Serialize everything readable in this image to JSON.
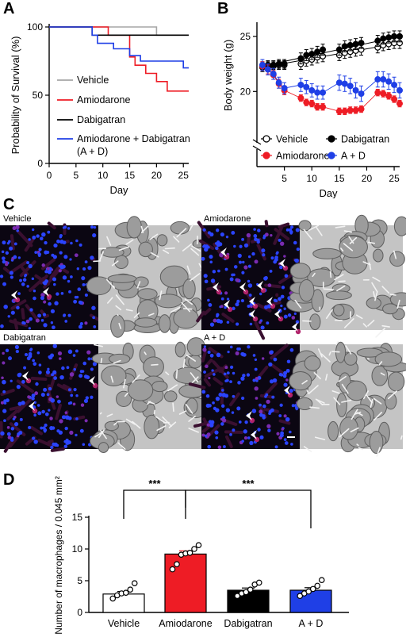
{
  "panels": {
    "a": "A",
    "b": "B",
    "c": "C",
    "d": "D"
  },
  "colors": {
    "vehicle_gray": "#a6a6a6",
    "amiodarone_red": "#ee1c25",
    "dabigatran_black": "#000000",
    "ad_blue": "#1f3fe6",
    "nuclei_blue": "#2b44ff",
    "macrophage_red": "#b0226a"
  },
  "panel_c_labels": [
    "Vehicle",
    "Amiodarone",
    "Dabigatran",
    "A + D"
  ],
  "chart_data": [
    {
      "type": "line",
      "style": "step",
      "xlabel": "Day",
      "ylabel": "Probability of Survival (%)",
      "xlim": [
        0,
        26
      ],
      "ylim": [
        0,
        100
      ],
      "xticks": [
        0,
        5,
        10,
        15,
        20,
        25
      ],
      "yticks": [
        0,
        50,
        100
      ],
      "legend": "inside-bottom-left",
      "series": [
        {
          "name": "Vehicle",
          "color": "#a6a6a6",
          "x": [
            0,
            20,
            20,
            26
          ],
          "y": [
            100,
            100,
            94,
            94
          ]
        },
        {
          "name": "Amiodarone",
          "color": "#ee1c25",
          "x": [
            0,
            11,
            11,
            15,
            15,
            16,
            16,
            18,
            18,
            20,
            20,
            22,
            22,
            26
          ],
          "y": [
            100,
            100,
            94,
            94,
            78,
            78,
            72,
            72,
            66,
            66,
            60,
            60,
            53,
            53
          ]
        },
        {
          "name": "Dabigatran",
          "color": "#000000",
          "x": [
            0,
            8,
            8,
            19,
            19,
            26
          ],
          "y": [
            100,
            100,
            94,
            94,
            94,
            94
          ]
        },
        {
          "name": "Amiodarone + Dabigatran",
          "name_line2": "(A + D)",
          "color": "#1f3fe6",
          "x": [
            0,
            8,
            8,
            9,
            9,
            12,
            12,
            15,
            15,
            17,
            17,
            25,
            25,
            26
          ],
          "y": [
            100,
            100,
            94,
            94,
            88,
            88,
            84,
            84,
            79,
            79,
            75,
            75,
            70,
            70
          ]
        }
      ]
    },
    {
      "type": "line",
      "style": "error-bars",
      "xlabel": "Day",
      "ylabel": "Body weight (g)",
      "xlim": [
        0,
        26
      ],
      "ylim": [
        17.5,
        26
      ],
      "axis_break": true,
      "xticks": [
        5,
        10,
        15,
        20,
        25
      ],
      "yticks": [
        20,
        25
      ],
      "legend": "bottom",
      "series": [
        {
          "name": "Vehicle",
          "marker": "open-circle",
          "color": "#000000",
          "x": [
            1,
            2,
            3,
            4,
            5,
            8,
            9,
            10,
            11,
            12,
            15,
            16,
            17,
            18,
            19,
            22,
            23,
            24,
            25,
            26
          ],
          "values": [
            22.2,
            22.3,
            22.3,
            22.4,
            22.4,
            22.5,
            22.8,
            22.9,
            23.1,
            23.2,
            23.3,
            23.5,
            23.6,
            23.7,
            23.8,
            24.0,
            24.2,
            24.3,
            24.4,
            24.4
          ],
          "err": [
            0.4,
            0.4,
            0.4,
            0.4,
            0.4,
            0.5,
            0.5,
            0.5,
            0.5,
            0.5,
            0.5,
            0.5,
            0.5,
            0.5,
            0.5,
            0.5,
            0.5,
            0.5,
            0.5,
            0.5
          ]
        },
        {
          "name": "Dabigatran",
          "marker": "filled-circle",
          "color": "#000000",
          "x": [
            1,
            2,
            3,
            4,
            5,
            8,
            9,
            10,
            11,
            12,
            15,
            16,
            17,
            18,
            19,
            22,
            23,
            24,
            25,
            26
          ],
          "values": [
            22.3,
            22.4,
            22.4,
            22.5,
            22.5,
            23.0,
            23.3,
            23.4,
            23.6,
            23.8,
            23.8,
            24.1,
            24.2,
            24.3,
            24.4,
            24.6,
            24.8,
            24.9,
            25.0,
            25.0
          ],
          "err": [
            0.4,
            0.4,
            0.4,
            0.4,
            0.4,
            0.5,
            0.5,
            0.5,
            0.5,
            0.5,
            0.5,
            0.5,
            0.5,
            0.5,
            0.5,
            0.5,
            0.5,
            0.5,
            0.5,
            0.5
          ]
        },
        {
          "name": "Amiodarone",
          "marker": "filled-circle",
          "color": "#ee1c25",
          "x": [
            1,
            2,
            3,
            4,
            5,
            8,
            9,
            10,
            11,
            12,
            15,
            16,
            17,
            18,
            19,
            22,
            23,
            24,
            25,
            26
          ],
          "values": [
            22.3,
            22.0,
            21.5,
            20.7,
            20.1,
            19.4,
            19.0,
            18.9,
            18.6,
            18.6,
            18.2,
            18.2,
            18.3,
            18.3,
            18.4,
            19.9,
            19.8,
            19.6,
            19.3,
            18.9
          ],
          "err": [
            0.4,
            0.4,
            0.4,
            0.4,
            0.4,
            0.3,
            0.3,
            0.3,
            0.3,
            0.3,
            0.3,
            0.3,
            0.3,
            0.3,
            0.3,
            0.3,
            0.3,
            0.3,
            0.3,
            0.3
          ]
        },
        {
          "name": "A + D",
          "marker": "filled-circle",
          "color": "#1f3fe6",
          "x": [
            1,
            2,
            3,
            4,
            5,
            8,
            9,
            10,
            11,
            12,
            15,
            16,
            17,
            18,
            19,
            22,
            23,
            24,
            25,
            26
          ],
          "values": [
            22.4,
            22.0,
            21.6,
            20.8,
            20.3,
            20.6,
            20.4,
            20.1,
            19.9,
            19.9,
            20.8,
            20.7,
            20.5,
            20.1,
            19.8,
            21.1,
            21.1,
            20.9,
            20.6,
            20.1
          ],
          "err": [
            0.5,
            0.5,
            0.5,
            0.5,
            0.5,
            0.6,
            0.6,
            0.6,
            0.6,
            0.6,
            0.7,
            0.7,
            0.7,
            0.7,
            0.7,
            0.7,
            0.7,
            0.7,
            0.7,
            0.7
          ]
        }
      ]
    },
    {
      "type": "bar",
      "ylabel": "Number of macrophages / 0.045 mm²",
      "ylim": [
        0,
        15
      ],
      "yticks": [
        0,
        5,
        10,
        15
      ],
      "categories": [
        "Vehicle",
        "Amiodarone",
        "Dabigatran",
        "A + D"
      ],
      "values": [
        2.9,
        9.2,
        3.5,
        3.5
      ],
      "err": [
        0.4,
        0.5,
        0.35,
        0.4
      ],
      "fills": [
        "#ffffff",
        "#ee1c25",
        "#000000",
        "#1f3fe6"
      ],
      "points": [
        [
          2.2,
          2.7,
          3.0,
          3.1,
          3.6,
          4.6
        ],
        [
          6.8,
          7.6,
          9.1,
          9.3,
          9.4,
          10.0,
          10.6
        ],
        [
          2.6,
          3.0,
          3.2,
          3.6,
          4.4,
          4.7
        ],
        [
          2.6,
          3.0,
          3.3,
          3.7,
          4.2,
          5.1
        ]
      ],
      "significance": [
        {
          "from": "Vehicle",
          "to": "Amiodarone",
          "label": "***"
        },
        {
          "from": "Amiodarone",
          "to": "A + D",
          "label": "***"
        }
      ]
    }
  ]
}
